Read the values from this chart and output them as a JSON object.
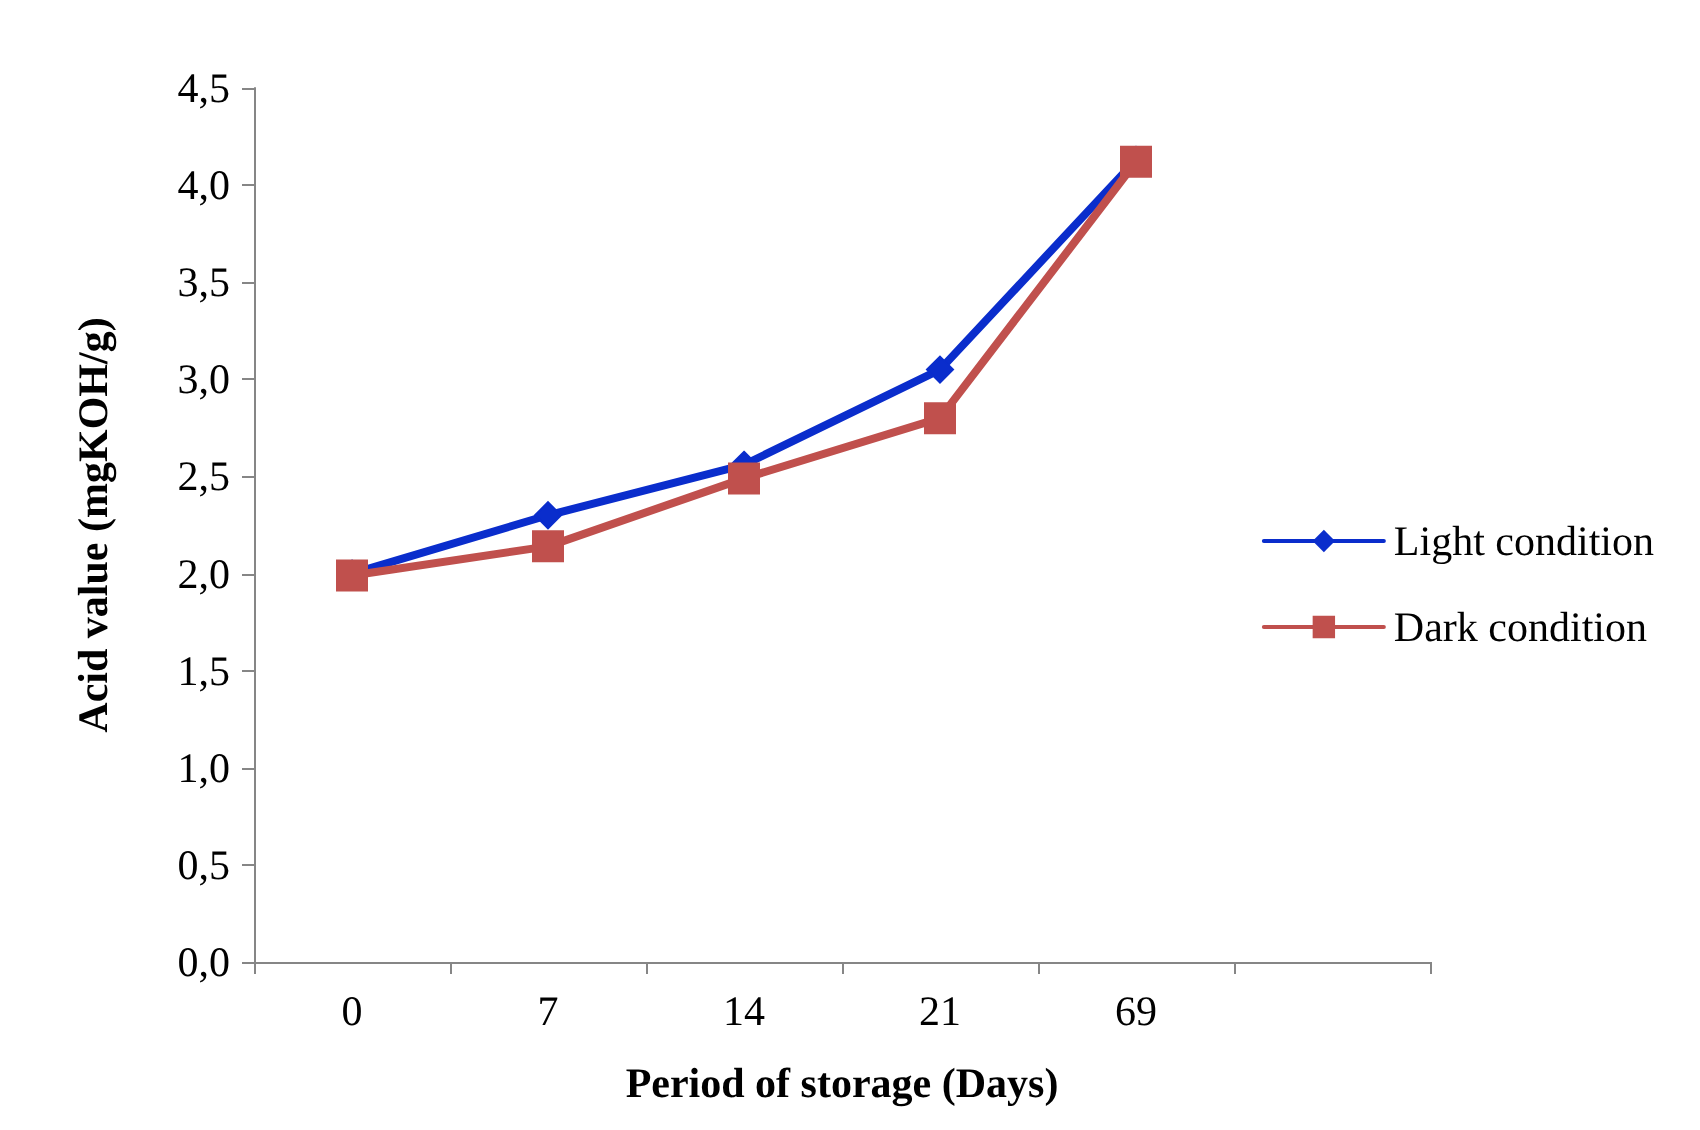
{
  "chart_data": {
    "type": "line",
    "xlabel": "Period of storage (Days)",
    "ylabel": "Acid value (mgKOH/g)",
    "categories": [
      "0",
      "7",
      "14",
      "21",
      "69",
      null
    ],
    "series": [
      {
        "name": "Light condition",
        "color": "#0a2dcc",
        "marker": "diamond",
        "values": [
          2.0,
          2.3,
          2.56,
          3.05,
          4.13,
          null
        ]
      },
      {
        "name": "Dark condition",
        "color": "#c0504d",
        "marker": "square",
        "values": [
          1.99,
          2.14,
          2.49,
          2.8,
          4.12,
          null
        ]
      }
    ],
    "ylim": [
      0,
      4.5
    ],
    "yticks": [
      {
        "value": 0,
        "label": "0,0"
      },
      {
        "value": 0.5,
        "label": "0,5"
      },
      {
        "value": 1,
        "label": "1,0"
      },
      {
        "value": 1.5,
        "label": "1,5"
      },
      {
        "value": 2,
        "label": "2,0"
      },
      {
        "value": 2.5,
        "label": "2,5"
      },
      {
        "value": 3,
        "label": "3,0"
      },
      {
        "value": 3.5,
        "label": "3,5"
      },
      {
        "value": 4,
        "label": "4,0"
      },
      {
        "value": 4.5,
        "label": "4,5"
      }
    ],
    "grid": false,
    "legend": "right",
    "line_style": "solid"
  }
}
